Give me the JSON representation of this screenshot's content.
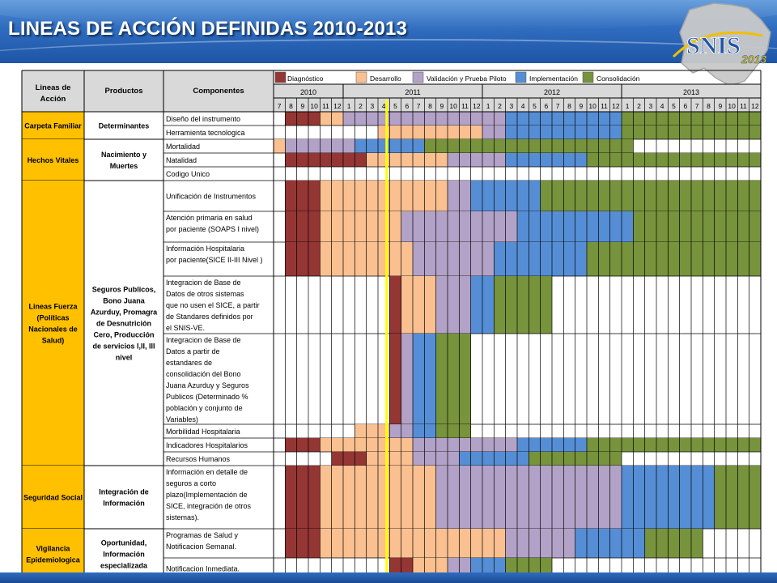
{
  "title": "LINEAS DE ACCIÓN DEFINIDAS 2010-2013",
  "logo": {
    "text": "SNIS",
    "year": "2013"
  },
  "colors": {
    "D": "#943634",
    "Des": "#fac090",
    "V": "#b3a2c7",
    "I": "#558ed5",
    "C": "#77933c",
    "header_bg": "#d9d9d9",
    "label_bg": "#ffc000",
    "marker": "#ffff00"
  },
  "legend": [
    {
      "key": "D",
      "label": "Diagnóstico"
    },
    {
      "key": "Des",
      "label": "Desarrollo"
    },
    {
      "key": "V",
      "label": "Validación y Prueba Piloto"
    },
    {
      "key": "I",
      "label": "Implementación"
    },
    {
      "key": "C",
      "label": "Consolidación"
    }
  ],
  "headers": {
    "lineas": "Lineas de Acción",
    "productos": "Productos",
    "componentes": "Componentes"
  },
  "years": [
    {
      "label": "2010",
      "span": 6
    },
    {
      "label": "2011",
      "span": 12
    },
    {
      "label": "2012",
      "span": 12
    },
    {
      "label": "2013",
      "span": 12
    }
  ],
  "months": [
    "7",
    "8",
    "9",
    "10",
    "11",
    "12",
    "1",
    "2",
    "3",
    "4",
    "5",
    "6",
    "7",
    "8",
    "9",
    "10",
    "11",
    "12",
    "1",
    "2",
    "3",
    "4",
    "5",
    "6",
    "7",
    "8",
    "9",
    "10",
    "11",
    "12",
    "1",
    "2",
    "3",
    "4",
    "5",
    "6",
    "7",
    "8",
    "9",
    "10",
    "11",
    "12"
  ],
  "groups": [
    {
      "lineas": [
        "Carpeta Familiar"
      ],
      "productos": [
        "Determinantes"
      ],
      "r0": 0,
      "r1": 2
    },
    {
      "lineas": [
        "Hechos Vitales"
      ],
      "productos": [
        "Nacimiento y",
        "Muertes"
      ],
      "r0": 2,
      "r1": 5
    },
    {
      "lineas": [
        "Lineas Fuerza",
        "(Políticas",
        "Nacionales de",
        "Salud)"
      ],
      "productos": [
        "Seguros Publicos,",
        "Bono Juana",
        "Azurduy, Promagra",
        "de Desnutrición",
        "Cero, Producción",
        "de servicios I,II, III",
        "nivel"
      ],
      "r0": 5,
      "r1": 13
    },
    {
      "lineas": [
        "Seguridad Social"
      ],
      "productos": [
        "Integración de",
        "Información"
      ],
      "r0": 13,
      "r1": 14
    },
    {
      "lineas": [
        "Vigilancia",
        "Epidemiologica"
      ],
      "productos": [
        "Oportunidad,",
        "Información",
        "especializada"
      ],
      "r0": 14,
      "r1": 16
    }
  ],
  "rows": [
    {
      "lines": [
        "Diseño del instrumento"
      ],
      "cells": [
        [
          0,
          1,
          "none"
        ],
        [
          1,
          4,
          "D"
        ],
        [
          4,
          6,
          "Des"
        ],
        [
          6,
          9,
          "V"
        ],
        [
          9,
          18,
          "V"
        ],
        [
          18,
          20,
          "V"
        ],
        [
          20,
          30,
          "I"
        ],
        [
          30,
          42,
          "C"
        ]
      ]
    },
    {
      "lines": [
        "Herramienta tecnologica"
      ],
      "cells": [
        [
          0,
          9,
          "none"
        ],
        [
          9,
          18,
          "Des"
        ],
        [
          18,
          20,
          "V"
        ],
        [
          20,
          30,
          "I"
        ],
        [
          30,
          42,
          "C"
        ]
      ]
    },
    {
      "lines": [
        "Mortalidad"
      ],
      "cells": [
        [
          0,
          1,
          "Des"
        ],
        [
          1,
          7,
          "V"
        ],
        [
          7,
          13,
          "I"
        ],
        [
          13,
          31,
          "C"
        ],
        [
          31,
          42,
          "none"
        ]
      ]
    },
    {
      "lines": [
        "Natalidad"
      ],
      "cells": [
        [
          0,
          1,
          "none"
        ],
        [
          1,
          8,
          "D"
        ],
        [
          8,
          15,
          "Des"
        ],
        [
          15,
          20,
          "V"
        ],
        [
          20,
          27,
          "I"
        ],
        [
          27,
          42,
          "C"
        ]
      ]
    },
    {
      "lines": [
        "Codigo Unico"
      ],
      "cells": [
        [
          0,
          42,
          "none"
        ]
      ]
    },
    {
      "lines": [
        "Unificación de Instrumentos"
      ],
      "cells": [
        [
          0,
          1,
          "none"
        ],
        [
          1,
          4,
          "D"
        ],
        [
          4,
          15,
          "Des"
        ],
        [
          15,
          17,
          "V"
        ],
        [
          17,
          23,
          "I"
        ],
        [
          23,
          42,
          "C"
        ]
      ]
    },
    {
      "lines": [
        "Atención primaria en salud",
        "por paciente (SOAPS I nivel)"
      ],
      "cells": [
        [
          0,
          1,
          "none"
        ],
        [
          1,
          4,
          "D"
        ],
        [
          4,
          11,
          "Des"
        ],
        [
          11,
          21,
          "V"
        ],
        [
          21,
          31,
          "I"
        ],
        [
          31,
          42,
          "C"
        ]
      ]
    },
    {
      "lines": [
        "Información Hospitalaria",
        "por paciente(SICE II-III Nivel )"
      ],
      "cells": [
        [
          0,
          1,
          "none"
        ],
        [
          1,
          4,
          "D"
        ],
        [
          4,
          12,
          "Des"
        ],
        [
          12,
          19,
          "V"
        ],
        [
          19,
          27,
          "I"
        ],
        [
          27,
          42,
          "C"
        ]
      ]
    },
    {
      "lines": [
        "Integracion de Base de",
        "Datos de otros sistemas",
        "que no usen el SICE, a partir",
        "de Standares definidos por",
        "el SNIS-VE."
      ],
      "cells": [
        [
          0,
          10,
          "none"
        ],
        [
          10,
          11,
          "D"
        ],
        [
          11,
          14,
          "Des"
        ],
        [
          14,
          17,
          "V"
        ],
        [
          17,
          19,
          "I"
        ],
        [
          19,
          24,
          "C"
        ],
        [
          24,
          42,
          "none"
        ]
      ]
    },
    {
      "lines": [
        "Integracion de Base de",
        "Datos a partir de",
        "estandares de",
        "consolidación del Bono",
        "Juana Azurduy y Seguros",
        "Publicos (Determinado %",
        "población  y conjunto de",
        "Variables)"
      ],
      "cells": [
        [
          0,
          10,
          "none"
        ],
        [
          10,
          11,
          "D"
        ],
        [
          11,
          12,
          "V"
        ],
        [
          12,
          14,
          "I"
        ],
        [
          14,
          17,
          "C"
        ],
        [
          17,
          42,
          "none"
        ]
      ]
    },
    {
      "lines": [
        "Morbilidad Hospitalaria"
      ],
      "cells": [
        [
          0,
          7,
          "none"
        ],
        [
          7,
          10,
          "Des"
        ],
        [
          10,
          12,
          "V"
        ],
        [
          12,
          14,
          "I"
        ],
        [
          14,
          17,
          "C"
        ],
        [
          17,
          42,
          "none"
        ]
      ]
    },
    {
      "lines": [
        "Indicadores Hospitalarios"
      ],
      "cells": [
        [
          0,
          1,
          "none"
        ],
        [
          1,
          4,
          "D"
        ],
        [
          4,
          12,
          "Des"
        ],
        [
          12,
          21,
          "V"
        ],
        [
          21,
          27,
          "I"
        ],
        [
          27,
          42,
          "C"
        ]
      ]
    },
    {
      "lines": [
        "Recursos Humanos"
      ],
      "cells": [
        [
          0,
          5,
          "none"
        ],
        [
          5,
          8,
          "D"
        ],
        [
          8,
          12,
          "Des"
        ],
        [
          12,
          16,
          "V"
        ],
        [
          16,
          22,
          "I"
        ],
        [
          22,
          30,
          "C"
        ],
        [
          30,
          42,
          "none"
        ]
      ]
    },
    {
      "lines": [
        "Información en detalle de",
        "seguros a corto",
        "plazo(Implementación de",
        "SICE, integración de otros",
        "sistemas)."
      ],
      "cells": [
        [
          0,
          1,
          "none"
        ],
        [
          1,
          4,
          "D"
        ],
        [
          4,
          14,
          "Des"
        ],
        [
          14,
          30,
          "V"
        ],
        [
          30,
          38,
          "I"
        ],
        [
          38,
          42,
          "C"
        ]
      ]
    },
    {
      "lines": [
        "Programas de Salud y",
        "Notificacion Semanal."
      ],
      "cells": [
        [
          0,
          1,
          "none"
        ],
        [
          1,
          4,
          "D"
        ],
        [
          4,
          20,
          "Des"
        ],
        [
          20,
          26,
          "V"
        ],
        [
          26,
          32,
          "I"
        ],
        [
          32,
          37,
          "C"
        ],
        [
          37,
          42,
          "none"
        ]
      ]
    },
    {
      "lines": [
        "Notificacion Inmediata."
      ],
      "cells": [
        [
          0,
          10,
          "none"
        ],
        [
          10,
          12,
          "D"
        ],
        [
          12,
          15,
          "Des"
        ],
        [
          15,
          17,
          "V"
        ],
        [
          17,
          20,
          "I"
        ],
        [
          20,
          24,
          "C"
        ],
        [
          24,
          42,
          "none"
        ]
      ]
    }
  ],
  "marker_after_month_index": 10
}
